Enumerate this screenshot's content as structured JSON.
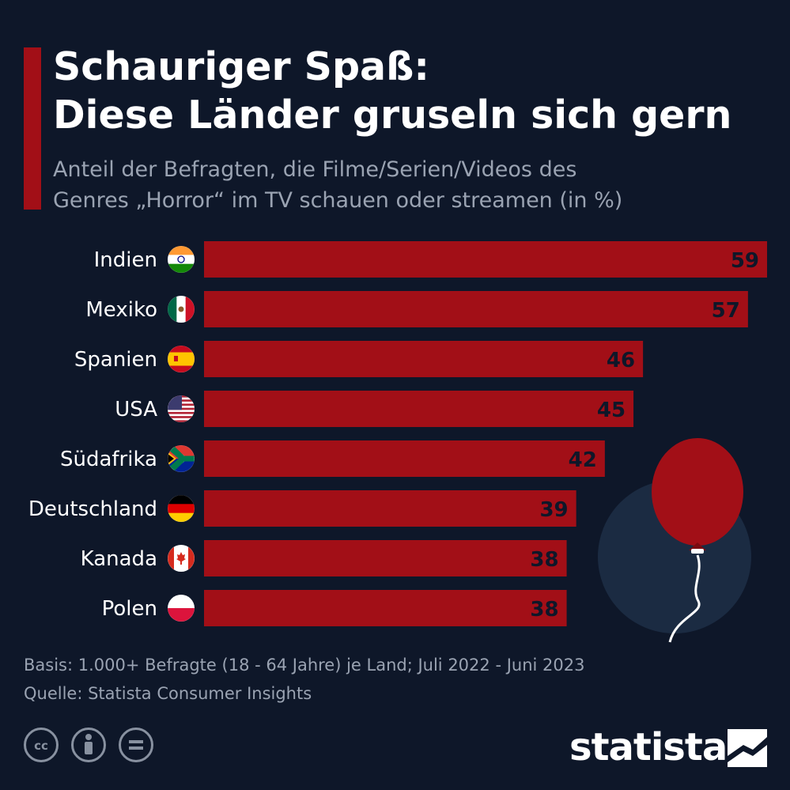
{
  "header": {
    "title_line1": "Schauriger Spaß:",
    "title_line2": "Diese Länder gruseln sich gern",
    "subtitle_line1": "Anteil der Befragten, die Filme/Serien/Videos des",
    "subtitle_line2": "Genres „Horror“ im TV schauen oder streamen (in %)"
  },
  "chart_data": {
    "type": "bar",
    "orientation": "horizontal",
    "categories": [
      "Indien",
      "Mexiko",
      "Spanien",
      "USA",
      "Südafrika",
      "Deutschland",
      "Kanada",
      "Polen"
    ],
    "values": [
      59,
      57,
      46,
      45,
      42,
      39,
      38,
      38
    ],
    "xlim": [
      0,
      59
    ],
    "grid": false,
    "bar_color": "#a20f17",
    "value_label_color": "#0e1729"
  },
  "flags": [
    "india-flag-icon",
    "mexico-flag-icon",
    "spain-flag-icon",
    "usa-flag-icon",
    "south-africa-flag-icon",
    "germany-flag-icon",
    "canada-flag-icon",
    "poland-flag-icon"
  ],
  "footer": {
    "basis": "Basis: 1.000+ Befragte (18 - 64 Jahre) je Land; Juli 2022 - Juni 2023",
    "source": "Quelle: Statista Consumer Insights"
  },
  "branding": {
    "logo_text": "statista"
  },
  "colors": {
    "background": "#0e1729",
    "accent": "#a20f17",
    "muted_text": "#9aa3b2"
  }
}
